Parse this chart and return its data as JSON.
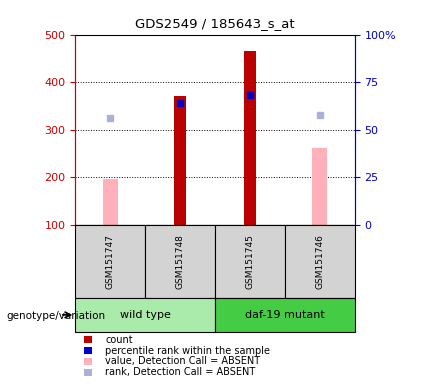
{
  "title": "GDS2549 / 185643_s_at",
  "samples": [
    "GSM151747",
    "GSM151748",
    "GSM151745",
    "GSM151746"
  ],
  "count_values": [
    null,
    370,
    466,
    null
  ],
  "percentile_values": [
    null,
    355,
    372,
    null
  ],
  "absent_value_values": [
    197,
    null,
    null,
    262
  ],
  "absent_rank_values": [
    325,
    null,
    null,
    330
  ],
  "ylim_left": [
    100,
    500
  ],
  "ylim_right": [
    0,
    100
  ],
  "yticks_left": [
    100,
    200,
    300,
    400,
    500
  ],
  "yticks_right": [
    0,
    25,
    50,
    75,
    100
  ],
  "yticklabels_right": [
    "0",
    "25",
    "50",
    "75",
    "100%"
  ],
  "left_axis_color": "#cc0000",
  "right_axis_color": "#0000cc",
  "bar_bottom": 100,
  "count_color": "#bb0000",
  "percentile_color": "#0000cc",
  "absent_value_color": "#ffb0b8",
  "absent_rank_color": "#aab0d8",
  "count_bar_width": 0.18,
  "absent_bar_width": 0.22,
  "gridline_ticks": [
    200,
    300,
    400
  ],
  "legend_items": [
    {
      "color": "#bb0000",
      "label": "count"
    },
    {
      "color": "#0000cc",
      "label": "percentile rank within the sample"
    },
    {
      "color": "#ffb0b8",
      "label": "value, Detection Call = ABSENT"
    },
    {
      "color": "#aab0d8",
      "label": "rank, Detection Call = ABSENT"
    }
  ],
  "genotype_label": "genotype/variation",
  "wildtype_color": "#aaeaaa",
  "mutant_color": "#44cc44",
  "sample_box_color": "#d3d3d3"
}
